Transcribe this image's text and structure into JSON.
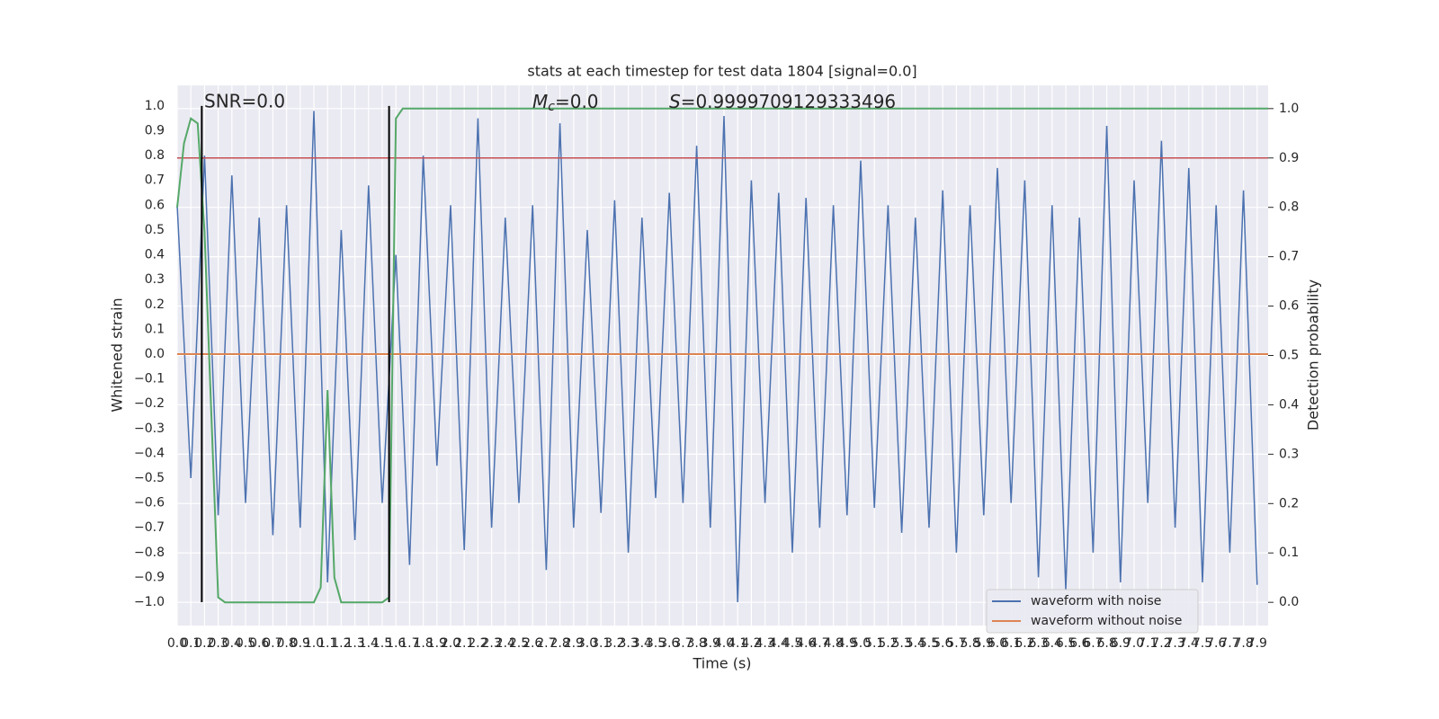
{
  "chart_data": {
    "type": "line",
    "title": "stats at each timestep for test data 1804 [signal=0.0]",
    "xlabel": "Time (s)",
    "ylabel": "Whitened strain",
    "y2label": "Detection probability",
    "annotations": {
      "snr": "SNR=0.0",
      "mc": {
        "main": "M",
        "sub": "c",
        "rest": "=0.0"
      },
      "s": {
        "main": "S",
        "rest": "=0.9999709129333496"
      }
    },
    "xlim": [
      0,
      7.98
    ],
    "ylim": [
      -1.094,
      1.083
    ],
    "y2lim": [
      -0.047,
      1.047
    ],
    "grid": true,
    "legend": "lower right",
    "xticks": [
      {
        "value": 0,
        "label": "0.0"
      },
      0.1,
      0.2,
      0.3,
      0.4,
      0.5,
      0.6,
      0.7,
      0.8,
      0.9,
      {
        "value": 1,
        "label": "1.0"
      },
      1.1,
      1.2,
      1.3,
      1.4,
      1.5,
      1.6,
      1.7,
      1.8,
      1.9,
      {
        "value": 2,
        "label": "2.0"
      },
      2.1,
      2.2,
      2.3,
      2.4,
      2.5,
      2.6,
      2.7,
      2.8,
      2.9,
      {
        "value": 3,
        "label": "3.0"
      },
      3.1,
      3.2,
      3.3,
      3.4,
      3.5,
      3.6,
      3.7,
      3.8,
      3.9,
      {
        "value": 4,
        "label": "4.0"
      },
      4.1,
      4.2,
      4.3,
      4.4,
      4.5,
      4.6,
      4.7,
      4.8,
      4.9,
      {
        "value": 5,
        "label": "5.0"
      },
      5.1,
      5.2,
      5.3,
      5.4,
      5.5,
      5.6,
      5.7,
      5.8,
      5.9,
      {
        "value": 6,
        "label": "6.0"
      },
      6.1,
      6.2,
      6.3,
      6.4,
      6.5,
      6.6,
      6.7,
      6.8,
      6.9,
      {
        "value": 7,
        "label": "7.0"
      },
      7.1,
      7.2,
      7.3,
      7.4,
      7.5,
      7.6,
      7.7,
      7.8,
      7.9
    ],
    "yticks": [
      {
        "value": -1,
        "label": "−1.0"
      },
      {
        "value": -0.9,
        "label": "−0.9"
      },
      {
        "value": -0.8,
        "label": "−0.8"
      },
      {
        "value": -0.7,
        "label": "−0.7"
      },
      {
        "value": -0.6,
        "label": "−0.6"
      },
      {
        "value": -0.5,
        "label": "−0.5"
      },
      {
        "value": -0.4,
        "label": "−0.4"
      },
      {
        "value": -0.3,
        "label": "−0.3"
      },
      {
        "value": -0.2,
        "label": "−0.2"
      },
      {
        "value": -0.1,
        "label": "−0.1"
      },
      {
        "value": 0,
        "label": "0.0"
      },
      0.1,
      0.2,
      0.3,
      0.4,
      0.5,
      0.6,
      0.7,
      0.8,
      0.9,
      {
        "value": 1,
        "label": "1.0"
      }
    ],
    "y2ticks": [
      {
        "value": 0,
        "label": "0.0"
      },
      0.1,
      0.2,
      0.3,
      0.4,
      0.5,
      0.6,
      0.7,
      0.8,
      0.9,
      {
        "value": 1,
        "label": "1.0"
      }
    ],
    "series": [
      {
        "name": "waveform with noise",
        "color": "#4c72b0",
        "x": [
          0,
          0.1,
          0.2,
          0.3,
          0.4,
          0.5,
          0.6,
          0.7,
          0.8,
          0.9,
          1,
          1.1,
          1.2,
          1.3,
          1.4,
          1.5,
          1.6,
          1.7,
          1.8,
          1.9,
          2,
          2.1,
          2.2,
          2.3,
          2.4,
          2.5,
          2.6,
          2.7,
          2.8,
          2.9,
          3,
          3.1,
          3.2,
          3.3,
          3.4,
          3.5,
          3.6,
          3.7,
          3.8,
          3.9,
          4,
          4.1,
          4.2,
          4.3,
          4.4,
          4.5,
          4.6,
          4.7,
          4.8,
          4.9,
          5,
          5.1,
          5.2,
          5.3,
          5.4,
          5.5,
          5.6,
          5.7,
          5.8,
          5.9,
          6,
          6.1,
          6.2,
          6.3,
          6.4,
          6.5,
          6.6,
          6.7,
          6.8,
          6.9,
          7,
          7.1,
          7.2,
          7.3,
          7.4,
          7.5,
          7.6,
          7.7,
          7.8,
          7.9
        ],
        "values": [
          0.6,
          -0.5,
          0.8,
          -0.65,
          0.72,
          -0.6,
          0.55,
          -0.73,
          0.6,
          -0.7,
          0.98,
          -0.92,
          0.5,
          -0.75,
          0.68,
          -0.6,
          0.4,
          -0.85,
          0.8,
          -0.45,
          0.6,
          -0.79,
          0.95,
          -0.7,
          0.55,
          -0.6,
          0.6,
          -0.87,
          0.93,
          -0.7,
          0.5,
          -0.64,
          0.62,
          -0.8,
          0.55,
          -0.58,
          0.65,
          -0.6,
          0.84,
          -0.7,
          0.96,
          -1.0,
          0.7,
          -0.6,
          0.65,
          -0.8,
          0.63,
          -0.7,
          0.6,
          -0.65,
          0.78,
          -0.62,
          0.6,
          -0.72,
          0.55,
          -0.7,
          0.66,
          -0.8,
          0.6,
          -0.65,
          0.75,
          -0.6,
          0.7,
          -0.9,
          0.6,
          -0.95,
          0.55,
          -0.8,
          0.92,
          -0.92,
          0.7,
          -0.6,
          0.86,
          -0.7,
          0.75,
          -0.92,
          0.6,
          -0.8,
          0.66,
          -0.93
        ]
      },
      {
        "name": "waveform without noise",
        "color": "#dd8452",
        "x": [
          0,
          7.98
        ],
        "values": [
          0,
          0
        ]
      }
    ],
    "detection_probability": {
      "color": "#55a868",
      "axis": "y2",
      "x": [
        0,
        0.05,
        0.1,
        0.15,
        0.2,
        0.3,
        0.35,
        1.0,
        1.05,
        1.1,
        1.15,
        1.2,
        1.5,
        1.55,
        1.6,
        1.65,
        7.98
      ],
      "values": [
        0.8,
        0.93,
        0.98,
        0.97,
        0.75,
        0.01,
        0,
        0,
        0.03,
        0.43,
        0.05,
        0,
        0,
        0.01,
        0.98,
        1.0,
        1.0
      ]
    },
    "threshold": {
      "value": 0.9,
      "axis": "y2",
      "color": "#c44e52"
    },
    "vlines": {
      "x": [
        0.18,
        1.55
      ],
      "ymin": -1,
      "ymax": 1,
      "color": "#000000"
    }
  }
}
